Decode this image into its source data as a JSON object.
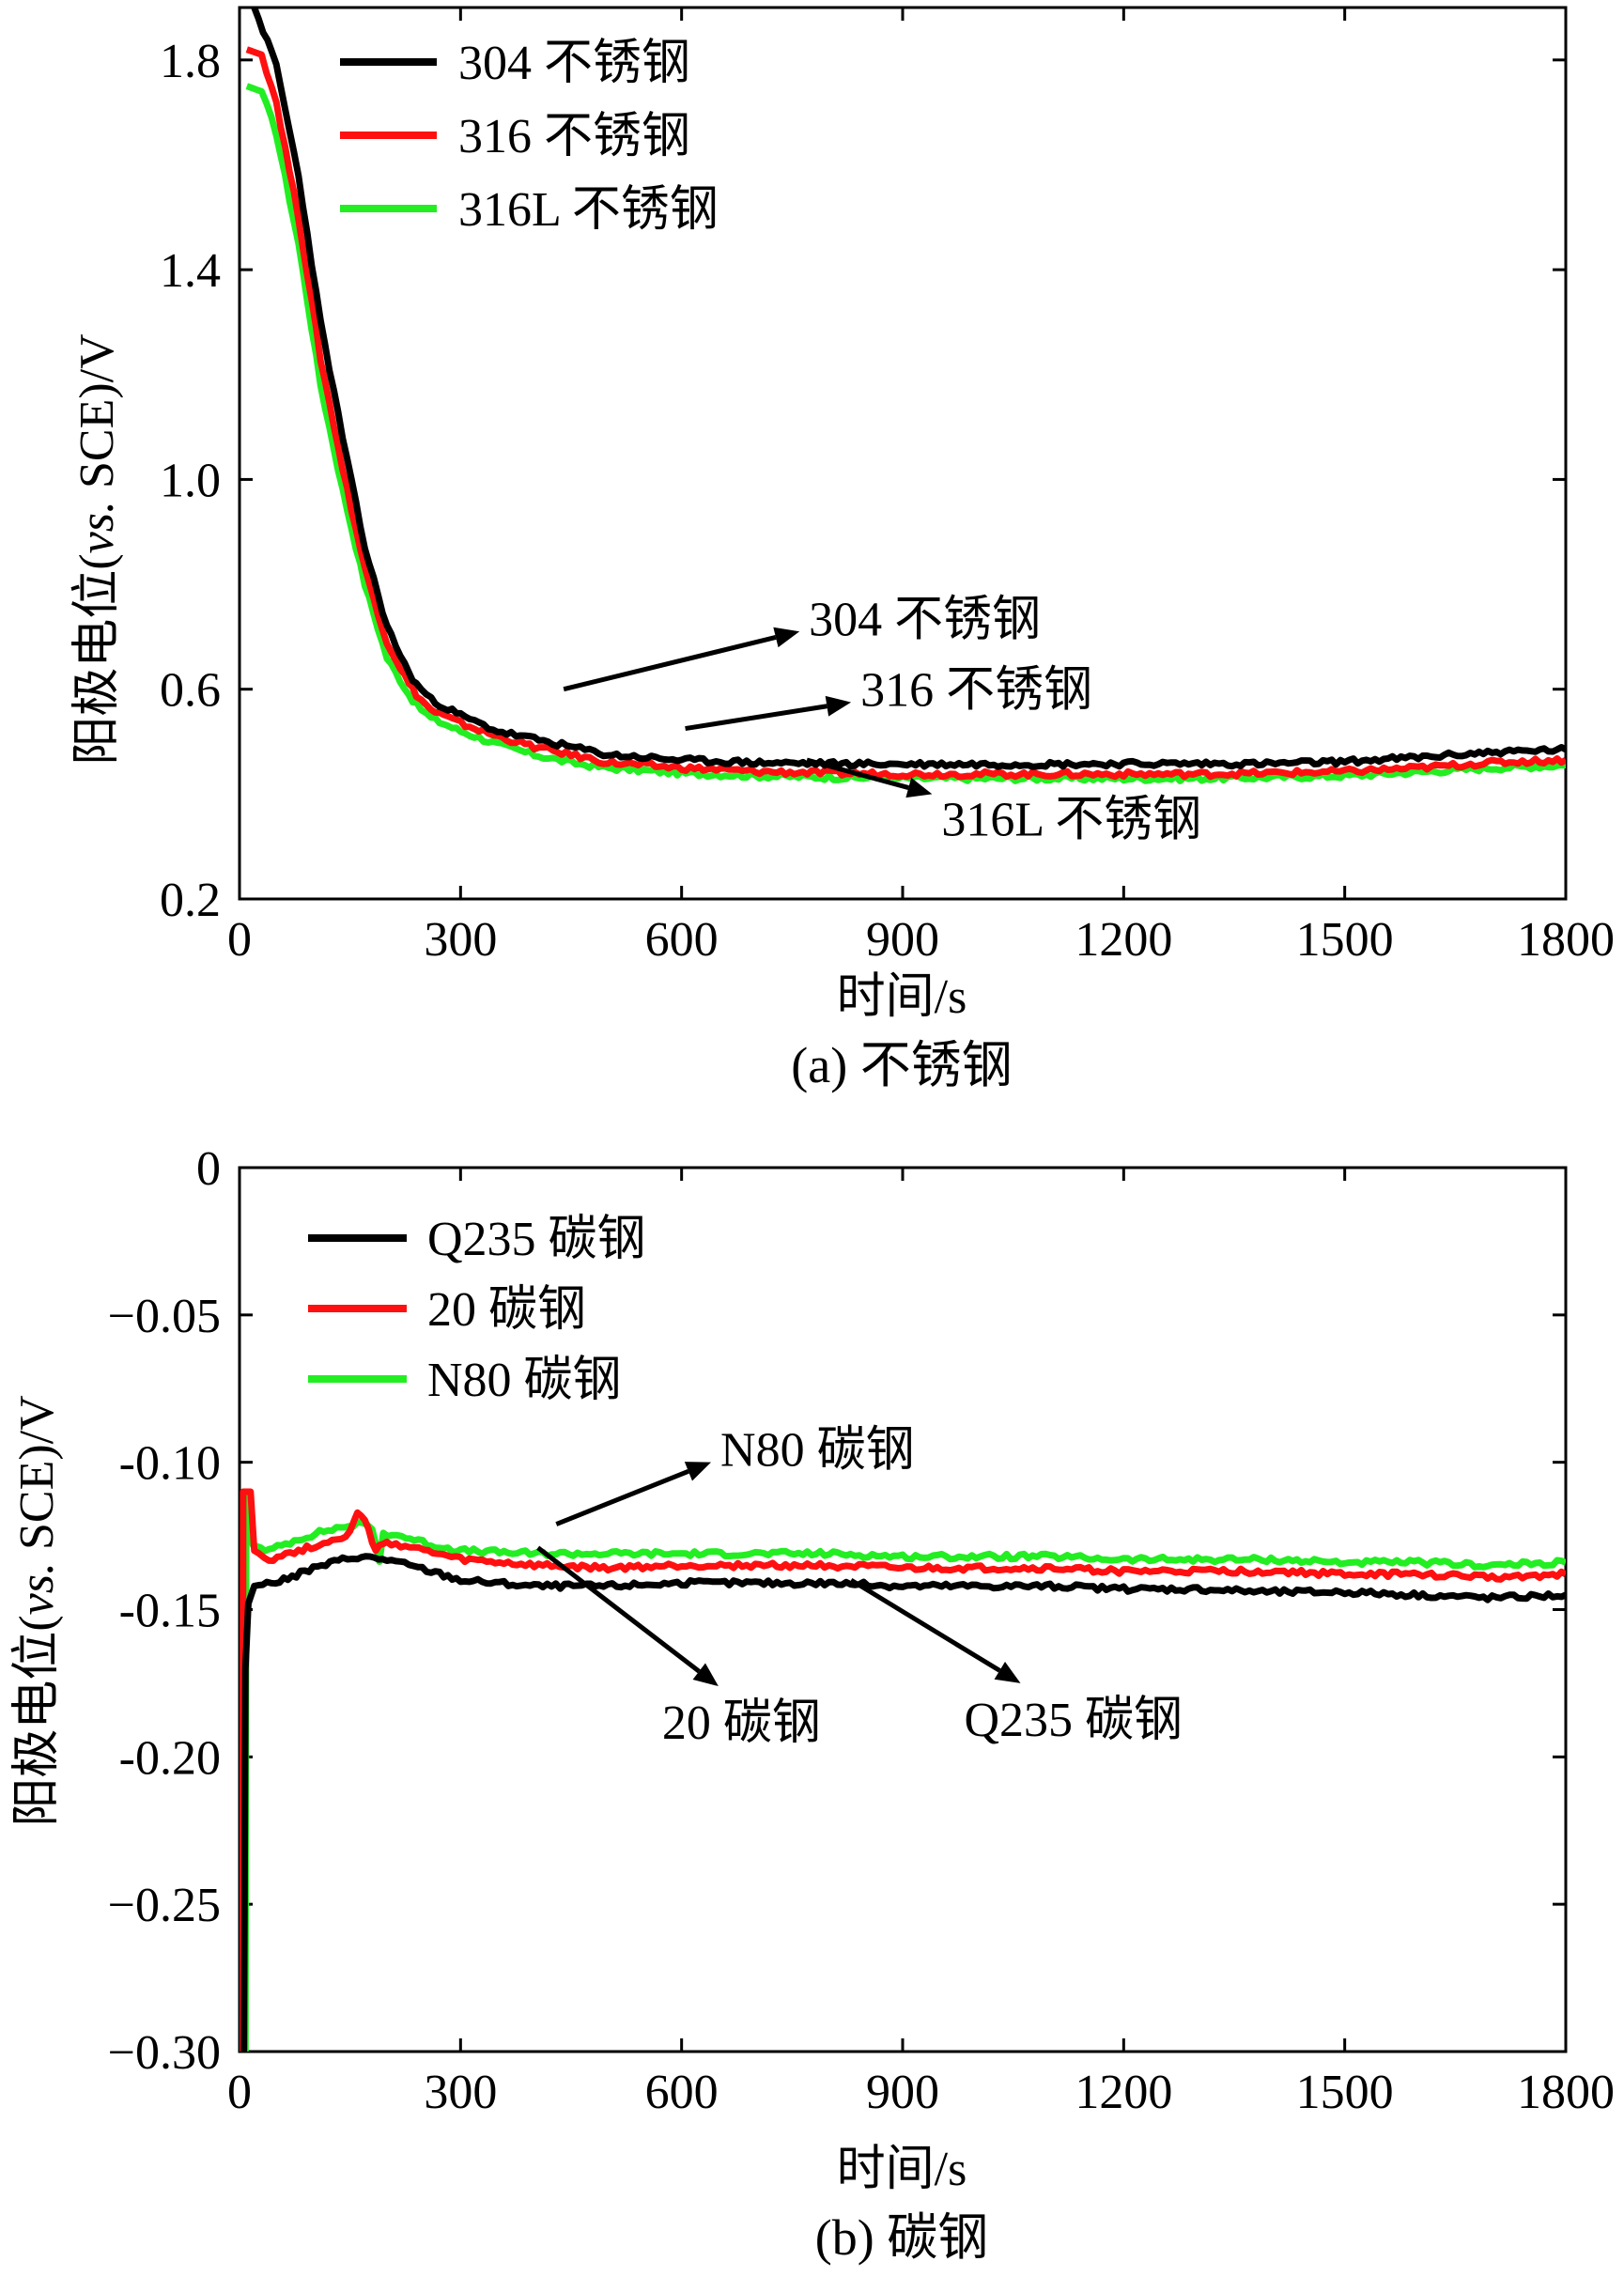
{
  "colors": {
    "black": "#000000",
    "red": "#ff1010",
    "green": "#22ee22"
  },
  "chart_data": [
    {
      "type": "line",
      "caption": "(a) 不锈钢",
      "xlabel": "时间/s",
      "ylabel_prefix": "阳极电位(",
      "ylabel_italic": "vs.",
      "ylabel_suffix": " SCE)/V",
      "xlim": [
        0,
        1800
      ],
      "ylim": [
        0.2,
        1.9
      ],
      "xticks": [
        0,
        300,
        600,
        900,
        1200,
        1500,
        1800
      ],
      "xtick_labels": [
        "0",
        "300",
        "600",
        "900",
        "1200",
        "1500",
        "1800"
      ],
      "yticks": [
        0.2,
        0.6,
        1.0,
        1.4,
        1.8
      ],
      "ytick_labels": [
        "0.2",
        "0.6",
        "1.0",
        "1.4",
        "1.8"
      ],
      "series": [
        {
          "name": "304 不锈钢",
          "color": "#000000",
          "points": [
            [
              20,
              1.9
            ],
            [
              50,
              1.79
            ],
            [
              80,
              1.58
            ],
            [
              110,
              1.3
            ],
            [
              140,
              1.08
            ],
            [
              170,
              0.87
            ],
            [
              200,
              0.72
            ],
            [
              230,
              0.63
            ],
            [
              240,
              0.61
            ],
            [
              260,
              0.58
            ],
            [
              300,
              0.55
            ],
            [
              350,
              0.52
            ],
            [
              400,
              0.505
            ],
            [
              450,
              0.49
            ],
            [
              500,
              0.475
            ],
            [
              600,
              0.465
            ],
            [
              700,
              0.46
            ],
            [
              800,
              0.458
            ],
            [
              900,
              0.457
            ],
            [
              1000,
              0.457
            ],
            [
              1100,
              0.457
            ],
            [
              1200,
              0.458
            ],
            [
              1300,
              0.458
            ],
            [
              1400,
              0.458
            ],
            [
              1500,
              0.462
            ],
            [
              1600,
              0.47
            ],
            [
              1700,
              0.48
            ],
            [
              1800,
              0.485
            ]
          ]
        },
        {
          "name": "316 不锈钢",
          "color": "#ff1010",
          "points": [
            [
              10,
              1.82
            ],
            [
              30,
              1.81
            ],
            [
              50,
              1.72
            ],
            [
              80,
              1.5
            ],
            [
              110,
              1.23
            ],
            [
              140,
              1.02
            ],
            [
              170,
              0.83
            ],
            [
              200,
              0.69
            ],
            [
              230,
              0.61
            ],
            [
              240,
              0.59
            ],
            [
              260,
              0.56
            ],
            [
              300,
              0.535
            ],
            [
              350,
              0.51
            ],
            [
              400,
              0.49
            ],
            [
              450,
              0.475
            ],
            [
              500,
              0.46
            ],
            [
              600,
              0.45
            ],
            [
              700,
              0.443
            ],
            [
              800,
              0.44
            ],
            [
              900,
              0.438
            ],
            [
              1000,
              0.438
            ],
            [
              1100,
              0.438
            ],
            [
              1200,
              0.438
            ],
            [
              1300,
              0.438
            ],
            [
              1400,
              0.44
            ],
            [
              1500,
              0.443
            ],
            [
              1600,
              0.45
            ],
            [
              1700,
              0.46
            ],
            [
              1800,
              0.465
            ]
          ]
        },
        {
          "name": "316L 不锈钢",
          "color": "#22ee22",
          "points": [
            [
              10,
              1.75
            ],
            [
              30,
              1.74
            ],
            [
              50,
              1.66
            ],
            [
              80,
              1.45
            ],
            [
              110,
              1.18
            ],
            [
              140,
              0.98
            ],
            [
              170,
              0.8
            ],
            [
              200,
              0.66
            ],
            [
              230,
              0.59
            ],
            [
              240,
              0.57
            ],
            [
              260,
              0.545
            ],
            [
              300,
              0.52
            ],
            [
              350,
              0.495
            ],
            [
              400,
              0.475
            ],
            [
              450,
              0.46
            ],
            [
              500,
              0.45
            ],
            [
              600,
              0.44
            ],
            [
              700,
              0.435
            ],
            [
              800,
              0.432
            ],
            [
              900,
              0.43
            ],
            [
              1000,
              0.43
            ],
            [
              1100,
              0.43
            ],
            [
              1200,
              0.43
            ],
            [
              1300,
              0.43
            ],
            [
              1400,
              0.432
            ],
            [
              1500,
              0.435
            ],
            [
              1600,
              0.442
            ],
            [
              1700,
              0.45
            ],
            [
              1800,
              0.455
            ]
          ]
        }
      ],
      "annotations": [
        {
          "text": "304 不锈钢",
          "from": [
            440,
            0.6
          ],
          "to": [
            760,
            0.71
          ]
        },
        {
          "text": "316 不锈钢",
          "from": [
            605,
            0.525
          ],
          "to": [
            830,
            0.575
          ]
        },
        {
          "text": "316L 不锈钢",
          "from": [
            770,
            0.465
          ],
          "to": [
            940,
            0.4
          ]
        }
      ]
    },
    {
      "type": "line",
      "caption": "(b) 碳钢",
      "xlabel": "时间/s",
      "ylabel_prefix": "阳极电位(",
      "ylabel_italic": "vs.",
      "ylabel_suffix": " SCE)/V",
      "xlim": [
        0,
        1800
      ],
      "ylim": [
        -0.3,
        0
      ],
      "xticks": [
        0,
        300,
        600,
        900,
        1200,
        1500,
        1800
      ],
      "xtick_labels": [
        "0",
        "300",
        "600",
        "900",
        "1200",
        "1500",
        "1800"
      ],
      "yticks": [
        0,
        -0.05,
        -0.1,
        -0.15,
        -0.2,
        -0.25,
        -0.3
      ],
      "ytick_labels": [
        "0",
        "−0.05",
        "-0.10",
        "-0.15",
        "-0.20",
        "−0.25",
        "−0.30"
      ],
      "series": [
        {
          "name": "Q235 碳钢",
          "color": "#000000",
          "points": [
            [
              6,
              -0.3
            ],
            [
              8,
              -0.17
            ],
            [
              12,
              -0.148
            ],
            [
              20,
              -0.142
            ],
            [
              60,
              -0.14
            ],
            [
              100,
              -0.136
            ],
            [
              140,
              -0.133
            ],
            [
              160,
              -0.132
            ],
            [
              200,
              -0.133
            ],
            [
              260,
              -0.137
            ],
            [
              300,
              -0.14
            ],
            [
              400,
              -0.142
            ],
            [
              500,
              -0.142
            ],
            [
              600,
              -0.141
            ],
            [
              700,
              -0.141
            ],
            [
              800,
              -0.141
            ],
            [
              900,
              -0.142
            ],
            [
              1000,
              -0.142
            ],
            [
              1100,
              -0.142
            ],
            [
              1200,
              -0.143
            ],
            [
              1300,
              -0.143
            ],
            [
              1400,
              -0.144
            ],
            [
              1500,
              -0.144
            ],
            [
              1600,
              -0.145
            ],
            [
              1700,
              -0.146
            ],
            [
              1800,
              -0.145
            ]
          ]
        },
        {
          "name": "20 碳钢",
          "color": "#ff1010",
          "points": [
            [
              4,
              -0.3
            ],
            [
              5,
              -0.11
            ],
            [
              15,
              -0.11
            ],
            [
              20,
              -0.13
            ],
            [
              40,
              -0.133
            ],
            [
              80,
              -0.13
            ],
            [
              120,
              -0.127
            ],
            [
              150,
              -0.124
            ],
            [
              160,
              -0.117
            ],
            [
              170,
              -0.12
            ],
            [
              185,
              -0.13
            ],
            [
              200,
              -0.127
            ],
            [
              250,
              -0.13
            ],
            [
              300,
              -0.133
            ],
            [
              400,
              -0.135
            ],
            [
              500,
              -0.136
            ],
            [
              600,
              -0.135
            ],
            [
              700,
              -0.135
            ],
            [
              800,
              -0.135
            ],
            [
              900,
              -0.136
            ],
            [
              1000,
              -0.136
            ],
            [
              1100,
              -0.136
            ],
            [
              1200,
              -0.137
            ],
            [
              1300,
              -0.137
            ],
            [
              1400,
              -0.137
            ],
            [
              1500,
              -0.138
            ],
            [
              1600,
              -0.138
            ],
            [
              1700,
              -0.139
            ],
            [
              1800,
              -0.138
            ]
          ]
        },
        {
          "name": "N80 碳钢",
          "color": "#22ee22",
          "points": [
            [
              8,
              -0.3
            ],
            [
              9,
              -0.112
            ],
            [
              14,
              -0.112
            ],
            [
              18,
              -0.128
            ],
            [
              40,
              -0.13
            ],
            [
              80,
              -0.126
            ],
            [
              120,
              -0.123
            ],
            [
              160,
              -0.121
            ],
            [
              180,
              -0.122
            ],
            [
              190,
              -0.134
            ],
            [
              195,
              -0.124
            ],
            [
              220,
              -0.125
            ],
            [
              260,
              -0.128
            ],
            [
              300,
              -0.13
            ],
            [
              400,
              -0.131
            ],
            [
              500,
              -0.131
            ],
            [
              600,
              -0.131
            ],
            [
              700,
              -0.131
            ],
            [
              800,
              -0.131
            ],
            [
              900,
              -0.132
            ],
            [
              1000,
              -0.132
            ],
            [
              1100,
              -0.132
            ],
            [
              1200,
              -0.133
            ],
            [
              1300,
              -0.133
            ],
            [
              1400,
              -0.133
            ],
            [
              1500,
              -0.134
            ],
            [
              1600,
              -0.134
            ],
            [
              1700,
              -0.135
            ],
            [
              1800,
              -0.134
            ]
          ]
        }
      ],
      "annotations": [
        {
          "text": "N80 碳钢",
          "from": [
            430,
            -0.121
          ],
          "to": [
            640,
            -0.1
          ]
        },
        {
          "text": "20 碳钢",
          "from": [
            405,
            -0.129
          ],
          "to": [
            650,
            -0.176
          ]
        },
        {
          "text": "Q235 碳钢",
          "from": [
            830,
            -0.14
          ],
          "to": [
            1060,
            -0.175
          ]
        }
      ]
    }
  ]
}
